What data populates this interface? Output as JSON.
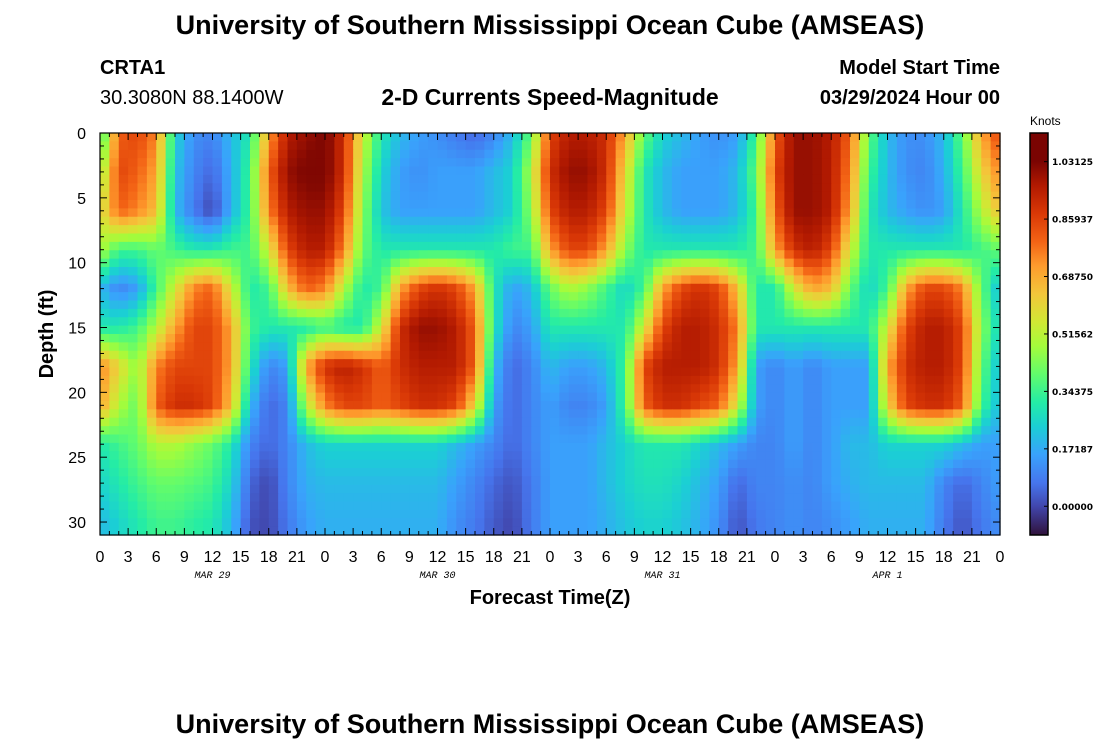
{
  "page": {
    "title": "University of Southern Mississippi Ocean Cube (AMSEAS)",
    "footer_title": "University of Southern Mississippi Ocean Cube (AMSEAS)",
    "station_id": "CRTA1",
    "station_coords": "30.3080N  88.1400W",
    "model_start_label": "Model Start Time",
    "model_start_value": "03/29/2024 Hour 00"
  },
  "chart_data": {
    "type": "heatmap",
    "title": "2-D Currents Speed-Magnitude",
    "xlabel": "Forecast Time(Z)",
    "ylabel": "Depth (ft)",
    "x_range_hours": [
      0,
      96
    ],
    "y_range_ft": [
      0,
      31
    ],
    "y_reversed": true,
    "x_tick_labels": [
      "0",
      "3",
      "6",
      "9",
      "12",
      "15",
      "18",
      "21",
      "0",
      "3",
      "6",
      "9",
      "12",
      "15",
      "18",
      "21",
      "0",
      "3",
      "6",
      "9",
      "12",
      "15",
      "18",
      "21",
      "0",
      "3",
      "6",
      "9",
      "12",
      "15",
      "18",
      "21",
      "0"
    ],
    "y_tick_values": [
      0,
      5,
      10,
      15,
      20,
      25,
      30
    ],
    "y_tick_labels": [
      "0",
      "5",
      "10",
      "15",
      "20",
      "25",
      "30"
    ],
    "date_labels": [
      {
        "label": "MAR 29",
        "hour": 12
      },
      {
        "label": "MAR 30",
        "hour": 36
      },
      {
        "label": "MAR 31",
        "hour": 60
      },
      {
        "label": "APR 1",
        "hour": 84
      }
    ],
    "colorbar": {
      "unit": "Knots",
      "min": -0.086,
      "max": 1.117,
      "ticks": [
        {
          "value": 0.0,
          "label": "0.00000"
        },
        {
          "value": 0.171875,
          "label": "0.17187"
        },
        {
          "value": 0.34375,
          "label": "0.34375"
        },
        {
          "value": 0.515625,
          "label": "0.51562"
        },
        {
          "value": 0.6875,
          "label": "0.68750"
        },
        {
          "value": 0.859375,
          "label": "0.85937"
        },
        {
          "value": 1.03125,
          "label": "1.03125"
        }
      ],
      "colormap": "turbo"
    },
    "grid": false,
    "speed_grid": {
      "x_hours": [
        0,
        2,
        4,
        6,
        8,
        10,
        12,
        14,
        16,
        18,
        20,
        22,
        24,
        26,
        28,
        30,
        32,
        34,
        36,
        38,
        40,
        42,
        44,
        46,
        48,
        50,
        52,
        54,
        56,
        58,
        60,
        62,
        64,
        66,
        68,
        70,
        72,
        74,
        76,
        78,
        80,
        82,
        84,
        86,
        88,
        90,
        92,
        94,
        96
      ],
      "depths_ft": [
        0,
        3,
        6,
        9,
        12,
        15,
        18,
        21,
        24,
        27,
        30
      ],
      "values_knots": [
        [
          0.3,
          0.8,
          0.85,
          0.75,
          0.25,
          0.12,
          0.1,
          0.2,
          0.3,
          0.7,
          0.95,
          1.0,
          1.05,
          0.9,
          0.55,
          0.3,
          0.2,
          0.15,
          0.12,
          0.08,
          0.05,
          0.1,
          0.2,
          0.4,
          0.85,
          0.95,
          0.95,
          0.9,
          0.7,
          0.4,
          0.25,
          0.2,
          0.15,
          0.12,
          0.15,
          0.35,
          0.8,
          1.0,
          1.0,
          0.95,
          0.8,
          0.4,
          0.2,
          0.12,
          0.12,
          0.2,
          0.4,
          0.7,
          0.85
        ],
        [
          0.45,
          0.85,
          0.8,
          0.7,
          0.22,
          0.1,
          0.05,
          0.18,
          0.35,
          0.8,
          1.0,
          1.05,
          1.05,
          0.9,
          0.5,
          0.25,
          0.15,
          0.12,
          0.15,
          0.15,
          0.15,
          0.2,
          0.25,
          0.5,
          0.9,
          1.0,
          1.0,
          0.9,
          0.6,
          0.3,
          0.2,
          0.15,
          0.15,
          0.15,
          0.2,
          0.4,
          0.85,
          1.0,
          1.0,
          0.95,
          0.75,
          0.35,
          0.2,
          0.12,
          0.1,
          0.18,
          0.35,
          0.6,
          0.75
        ],
        [
          0.55,
          0.8,
          0.75,
          0.65,
          0.2,
          0.08,
          0.0,
          0.18,
          0.35,
          0.75,
          0.95,
          1.0,
          1.0,
          0.85,
          0.45,
          0.22,
          0.15,
          0.15,
          0.15,
          0.15,
          0.15,
          0.2,
          0.25,
          0.45,
          0.85,
          0.95,
          0.95,
          0.85,
          0.55,
          0.3,
          0.2,
          0.15,
          0.15,
          0.15,
          0.2,
          0.35,
          0.8,
          1.0,
          1.0,
          0.95,
          0.7,
          0.3,
          0.2,
          0.15,
          0.12,
          0.15,
          0.3,
          0.5,
          0.65
        ],
        [
          0.5,
          0.35,
          0.35,
          0.4,
          0.35,
          0.3,
          0.3,
          0.35,
          0.35,
          0.55,
          0.85,
          0.95,
          0.95,
          0.75,
          0.4,
          0.3,
          0.3,
          0.3,
          0.3,
          0.3,
          0.3,
          0.3,
          0.35,
          0.35,
          0.7,
          0.85,
          0.85,
          0.7,
          0.45,
          0.3,
          0.3,
          0.3,
          0.3,
          0.3,
          0.3,
          0.35,
          0.7,
          0.9,
          0.95,
          0.85,
          0.55,
          0.3,
          0.3,
          0.3,
          0.3,
          0.3,
          0.3,
          0.35,
          0.4
        ],
        [
          0.2,
          0.1,
          0.15,
          0.35,
          0.55,
          0.75,
          0.8,
          0.55,
          0.3,
          0.35,
          0.65,
          0.8,
          0.75,
          0.5,
          0.3,
          0.35,
          0.7,
          0.85,
          0.9,
          0.85,
          0.7,
          0.3,
          0.15,
          0.2,
          0.4,
          0.5,
          0.45,
          0.35,
          0.25,
          0.35,
          0.7,
          0.85,
          0.9,
          0.85,
          0.65,
          0.3,
          0.3,
          0.55,
          0.7,
          0.65,
          0.4,
          0.25,
          0.35,
          0.7,
          0.85,
          0.85,
          0.75,
          0.4,
          0.2
        ],
        [
          0.3,
          0.3,
          0.35,
          0.5,
          0.7,
          0.85,
          0.85,
          0.7,
          0.35,
          0.3,
          0.3,
          0.3,
          0.35,
          0.3,
          0.3,
          0.55,
          0.9,
          1.0,
          1.0,
          0.95,
          0.8,
          0.3,
          0.1,
          0.15,
          0.3,
          0.3,
          0.3,
          0.3,
          0.3,
          0.55,
          0.85,
          0.95,
          0.95,
          0.9,
          0.75,
          0.3,
          0.3,
          0.3,
          0.3,
          0.3,
          0.3,
          0.3,
          0.55,
          0.85,
          0.95,
          0.95,
          0.85,
          0.45,
          0.25
        ],
        [
          0.75,
          0.6,
          0.45,
          0.75,
          0.85,
          0.85,
          0.85,
          0.7,
          0.3,
          0.1,
          0.15,
          0.7,
          0.9,
          0.95,
          0.9,
          0.8,
          0.9,
          0.95,
          0.95,
          0.95,
          0.8,
          0.2,
          0.05,
          0.1,
          0.2,
          0.15,
          0.15,
          0.2,
          0.35,
          0.85,
          0.95,
          0.95,
          0.95,
          0.9,
          0.7,
          0.15,
          0.1,
          0.15,
          0.1,
          0.15,
          0.15,
          0.15,
          0.7,
          0.9,
          0.95,
          0.95,
          0.85,
          0.4,
          0.2
        ],
        [
          0.7,
          0.5,
          0.4,
          0.8,
          0.9,
          0.9,
          0.85,
          0.65,
          0.2,
          0.05,
          0.1,
          0.5,
          0.75,
          0.85,
          0.85,
          0.8,
          0.85,
          0.9,
          0.9,
          0.85,
          0.6,
          0.15,
          0.05,
          0.1,
          0.15,
          0.1,
          0.1,
          0.15,
          0.35,
          0.8,
          0.9,
          0.9,
          0.85,
          0.8,
          0.55,
          0.15,
          0.1,
          0.15,
          0.1,
          0.15,
          0.15,
          0.15,
          0.6,
          0.85,
          0.9,
          0.9,
          0.8,
          0.35,
          0.2
        ],
        [
          0.3,
          0.35,
          0.4,
          0.5,
          0.5,
          0.45,
          0.4,
          0.3,
          0.1,
          0.05,
          0.1,
          0.2,
          0.25,
          0.25,
          0.25,
          0.25,
          0.25,
          0.25,
          0.25,
          0.2,
          0.15,
          0.1,
          0.05,
          0.1,
          0.15,
          0.15,
          0.15,
          0.2,
          0.25,
          0.3,
          0.3,
          0.3,
          0.25,
          0.2,
          0.15,
          0.1,
          0.1,
          0.15,
          0.1,
          0.15,
          0.2,
          0.2,
          0.25,
          0.25,
          0.25,
          0.25,
          0.2,
          0.15,
          0.15
        ],
        [
          0.25,
          0.3,
          0.35,
          0.4,
          0.4,
          0.38,
          0.35,
          0.25,
          0.05,
          0.0,
          0.1,
          0.18,
          0.2,
          0.2,
          0.2,
          0.2,
          0.2,
          0.2,
          0.2,
          0.15,
          0.1,
          0.05,
          0.02,
          0.08,
          0.15,
          0.15,
          0.15,
          0.2,
          0.25,
          0.28,
          0.28,
          0.25,
          0.2,
          0.15,
          0.05,
          0.1,
          0.1,
          0.12,
          0.1,
          0.15,
          0.18,
          0.2,
          0.2,
          0.2,
          0.2,
          0.1,
          0.05,
          0.1,
          0.15
        ],
        [
          0.2,
          0.25,
          0.3,
          0.35,
          0.35,
          0.32,
          0.3,
          0.2,
          0.02,
          0.0,
          0.08,
          0.15,
          0.18,
          0.18,
          0.18,
          0.18,
          0.18,
          0.18,
          0.18,
          0.12,
          0.08,
          0.03,
          0.0,
          0.08,
          0.15,
          0.15,
          0.15,
          0.18,
          0.22,
          0.25,
          0.25,
          0.22,
          0.18,
          0.12,
          0.02,
          0.08,
          0.1,
          0.12,
          0.1,
          0.12,
          0.15,
          0.18,
          0.18,
          0.18,
          0.18,
          0.08,
          0.02,
          0.08,
          0.12
        ]
      ]
    }
  }
}
